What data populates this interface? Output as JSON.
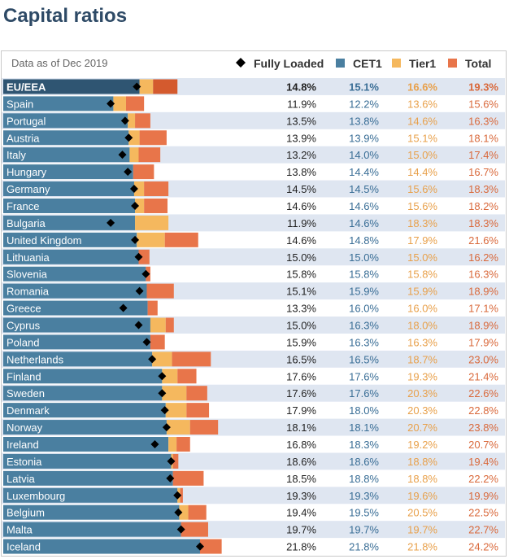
{
  "title": "Capital ratios",
  "chart_data": {
    "type": "bar",
    "note": "Data as of Dec 2019",
    "legend": [
      {
        "key": "fully_loaded",
        "label": "Fully Loaded",
        "color": "#000000",
        "marker": "diamond"
      },
      {
        "key": "cet1",
        "label": "CET1",
        "color": "#4a7fa0",
        "marker": "square"
      },
      {
        "key": "tier1",
        "label": "Tier1",
        "color": "#f5b85e",
        "marker": "square"
      },
      {
        "key": "total",
        "label": "Total",
        "color": "#e8754a",
        "marker": "square"
      }
    ],
    "colors": {
      "cet1_bar": "#4a7fa0",
      "tier1_bar": "#f5b85e",
      "total_bar": "#e8754a",
      "eu_cet1_bar": "#2f5572",
      "eu_total_bar": "#d45a2e",
      "row_shade": "#dfe6f1",
      "cet1_text": "#3a6e96",
      "tier1_text": "#e8a04a",
      "total_text": "#d9683a"
    },
    "xlim": [
      0,
      30
    ],
    "categories": [
      "EU/EEA",
      "Spain",
      "Portugal",
      "Austria",
      "Italy",
      "Hungary",
      "Germany",
      "France",
      "Bulgaria",
      "United Kingdom",
      "Lithuania",
      "Slovenia",
      "Romania",
      "Greece",
      "Cyprus",
      "Poland",
      "Netherlands",
      "Finland",
      "Sweden",
      "Denmark",
      "Norway",
      "Ireland",
      "Estonia",
      "Latvia",
      "Luxembourg",
      "Belgium",
      "Malta",
      "Iceland"
    ],
    "fully_loaded": [
      14.8,
      11.9,
      13.5,
      13.9,
      13.2,
      13.8,
      14.5,
      14.6,
      11.9,
      14.6,
      15.0,
      15.8,
      15.1,
      13.3,
      15.0,
      15.9,
      16.5,
      17.6,
      17.6,
      17.9,
      18.1,
      16.8,
      18.6,
      18.5,
      19.3,
      19.4,
      19.7,
      21.8
    ],
    "cet1": [
      15.1,
      12.2,
      13.8,
      13.9,
      14.0,
      14.4,
      14.5,
      14.6,
      14.6,
      14.8,
      15.0,
      15.8,
      15.9,
      16.0,
      16.3,
      16.3,
      16.5,
      17.6,
      17.6,
      18.0,
      18.1,
      18.3,
      18.6,
      18.8,
      19.3,
      19.5,
      19.7,
      21.8
    ],
    "tier1": [
      16.6,
      13.6,
      14.6,
      15.1,
      15.0,
      14.4,
      15.6,
      15.6,
      18.3,
      17.9,
      15.0,
      15.8,
      15.9,
      16.0,
      18.0,
      16.3,
      18.7,
      19.3,
      20.3,
      20.3,
      20.7,
      19.2,
      18.8,
      18.8,
      19.6,
      20.5,
      19.7,
      21.8
    ],
    "total": [
      19.3,
      15.6,
      16.3,
      18.1,
      17.4,
      16.7,
      18.3,
      18.2,
      18.3,
      21.6,
      16.2,
      16.3,
      18.9,
      17.1,
      18.9,
      17.9,
      23.0,
      21.4,
      22.6,
      22.8,
      23.8,
      20.7,
      19.4,
      22.2,
      19.9,
      22.5,
      22.7,
      24.2
    ],
    "fully_loaded_labels": [
      "14.8%",
      "11.9%",
      "13.5%",
      "13.9%",
      "13.2%",
      "13.8%",
      "14.5%",
      "14.6%",
      "11.9%",
      "14.6%",
      "15.0%",
      "15.8%",
      "15.1%",
      "13.3%",
      "15.0%",
      "15.9%",
      "16.5%",
      "17.6%",
      "17.6%",
      "17.9%",
      "18.1%",
      "16.8%",
      "18.6%",
      "18.5%",
      "19.3%",
      "19.4%",
      "19.7%",
      "21.8%"
    ],
    "cet1_labels": [
      "15.1%",
      "12.2%",
      "13.8%",
      "13.9%",
      "14.0%",
      "14.4%",
      "14.5%",
      "14.6%",
      "14.6%",
      "14.8%",
      "15.0%",
      "15.8%",
      "15.9%",
      "16.0%",
      "16.3%",
      "16.3%",
      "16.5%",
      "17.6%",
      "17.6%",
      "18.0%",
      "18.1%",
      "18.3%",
      "18.6%",
      "18.8%",
      "19.3%",
      "19.5%",
      "19.7%",
      "21.8%"
    ],
    "tier1_labels": [
      "16.6%",
      "13.6%",
      "14.6%",
      "15.1%",
      "15.0%",
      "14.4%",
      "15.6%",
      "15.6%",
      "18.3%",
      "17.9%",
      "15.0%",
      "15.8%",
      "15.9%",
      "16.0%",
      "18.0%",
      "16.3%",
      "18.7%",
      "19.3%",
      "20.3%",
      "20.3%",
      "20.7%",
      "19.2%",
      "18.8%",
      "18.8%",
      "19.6%",
      "20.5%",
      "19.7%",
      "21.8%"
    ],
    "total_labels": [
      "19.3%",
      "15.6%",
      "16.3%",
      "18.1%",
      "17.4%",
      "16.7%",
      "18.3%",
      "18.2%",
      "18.3%",
      "21.6%",
      "16.2%",
      "16.3%",
      "18.9%",
      "17.1%",
      "18.9%",
      "17.9%",
      "23.0%",
      "21.4%",
      "22.6%",
      "22.8%",
      "23.8%",
      "20.7%",
      "19.4%",
      "22.2%",
      "19.9%",
      "22.5%",
      "22.7%",
      "24.2%"
    ]
  }
}
